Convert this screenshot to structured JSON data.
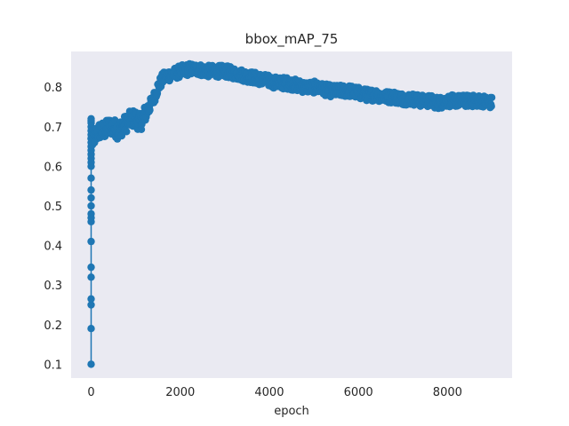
{
  "chart_data": {
    "type": "line",
    "title": "bbox_mAP_75",
    "xlabel": "epoch",
    "ylabel": "",
    "xlim": [
      -450,
      9450
    ],
    "ylim": [
      0.065,
      0.89
    ],
    "grid": false,
    "legend": "none",
    "background_color": "#eaeaf2",
    "series_color": "#1f77b4",
    "marker": "circle",
    "x_ticks": [
      0,
      2000,
      4000,
      6000,
      8000
    ],
    "x_tick_labels": [
      "0",
      "2000",
      "4000",
      "6000",
      "8000"
    ],
    "y_ticks": [
      0.1,
      0.2,
      0.3,
      0.4,
      0.5,
      0.6,
      0.7,
      0.8
    ],
    "y_tick_labels": [
      "0.1",
      "0.2",
      "0.3",
      "0.4",
      "0.5",
      "0.6",
      "0.7",
      "0.8"
    ],
    "noise_amplitude": 0.015,
    "series": [
      {
        "x": [
          0,
          0,
          0,
          0,
          0,
          0,
          0,
          0,
          0,
          0,
          0,
          0,
          0,
          0,
          0,
          0,
          0,
          0,
          0,
          0,
          0,
          0,
          0,
          0,
          0,
          0,
          0,
          0,
          0,
          10,
          20,
          50,
          100,
          150,
          200,
          300,
          400,
          500,
          600,
          700,
          800,
          900,
          1000,
          1100,
          1200,
          1300,
          1400,
          1500,
          1600,
          1700,
          1800,
          1900,
          2000,
          2200,
          2400,
          2600,
          2800,
          3000,
          3200,
          3400,
          3600,
          3800,
          4000,
          4200,
          4400,
          4600,
          4800,
          5000,
          5200,
          5400,
          5600,
          5800,
          6000,
          6200,
          6400,
          6600,
          6800,
          7000,
          7200,
          7400,
          7600,
          7800,
          8000,
          8200,
          8400,
          8600,
          8800,
          9000
        ],
        "y": [
          0.1,
          0.19,
          0.25,
          0.265,
          0.32,
          0.345,
          0.41,
          0.46,
          0.47,
          0.48,
          0.5,
          0.52,
          0.54,
          0.57,
          0.6,
          0.61,
          0.62,
          0.63,
          0.64,
          0.65,
          0.66,
          0.67,
          0.68,
          0.69,
          0.7,
          0.715,
          0.71,
          0.72,
          0.67,
          0.68,
          0.66,
          0.67,
          0.68,
          0.685,
          0.69,
          0.69,
          0.7,
          0.7,
          0.69,
          0.7,
          0.71,
          0.72,
          0.72,
          0.71,
          0.73,
          0.75,
          0.77,
          0.8,
          0.82,
          0.83,
          0.83,
          0.835,
          0.84,
          0.845,
          0.845,
          0.84,
          0.84,
          0.84,
          0.835,
          0.83,
          0.825,
          0.82,
          0.815,
          0.81,
          0.81,
          0.805,
          0.8,
          0.8,
          0.795,
          0.79,
          0.79,
          0.79,
          0.785,
          0.78,
          0.78,
          0.775,
          0.775,
          0.77,
          0.77,
          0.765,
          0.765,
          0.76,
          0.765,
          0.765,
          0.765,
          0.765,
          0.765,
          0.76
        ]
      }
    ]
  }
}
